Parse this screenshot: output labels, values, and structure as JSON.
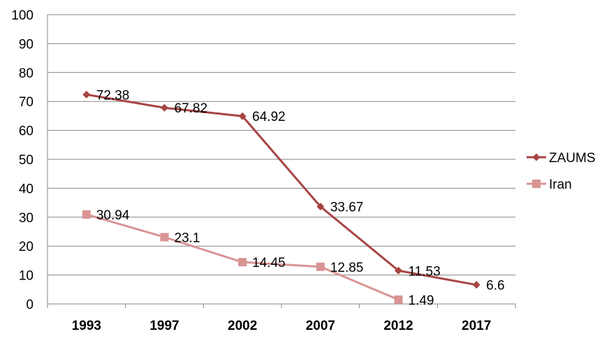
{
  "chart_data": {
    "type": "line",
    "categories": [
      "1993",
      "1997",
      "2002",
      "2007",
      "2012",
      "2017"
    ],
    "ylim": [
      0,
      100
    ],
    "yticks": [
      "0",
      "10",
      "20",
      "30",
      "40",
      "50",
      "60",
      "70",
      "80",
      "90",
      "100"
    ],
    "grid": true,
    "legend_position": "right",
    "series": [
      {
        "name": "ZAUMS",
        "color": "#A84444",
        "marker": "diamond",
        "values": [
          72.38,
          67.82,
          64.92,
          33.67,
          11.53,
          6.6
        ],
        "labels": [
          "72.38",
          "67.82",
          "64.92",
          "33.67",
          "11.53",
          "6.6"
        ]
      },
      {
        "name": "Iran",
        "color": "#D99494",
        "marker": "square",
        "values": [
          30.94,
          23.1,
          14.45,
          12.85,
          1.49,
          null
        ],
        "labels": [
          "30.94",
          "23.1",
          "14.45",
          "12.85",
          "1.49",
          null
        ]
      }
    ]
  }
}
